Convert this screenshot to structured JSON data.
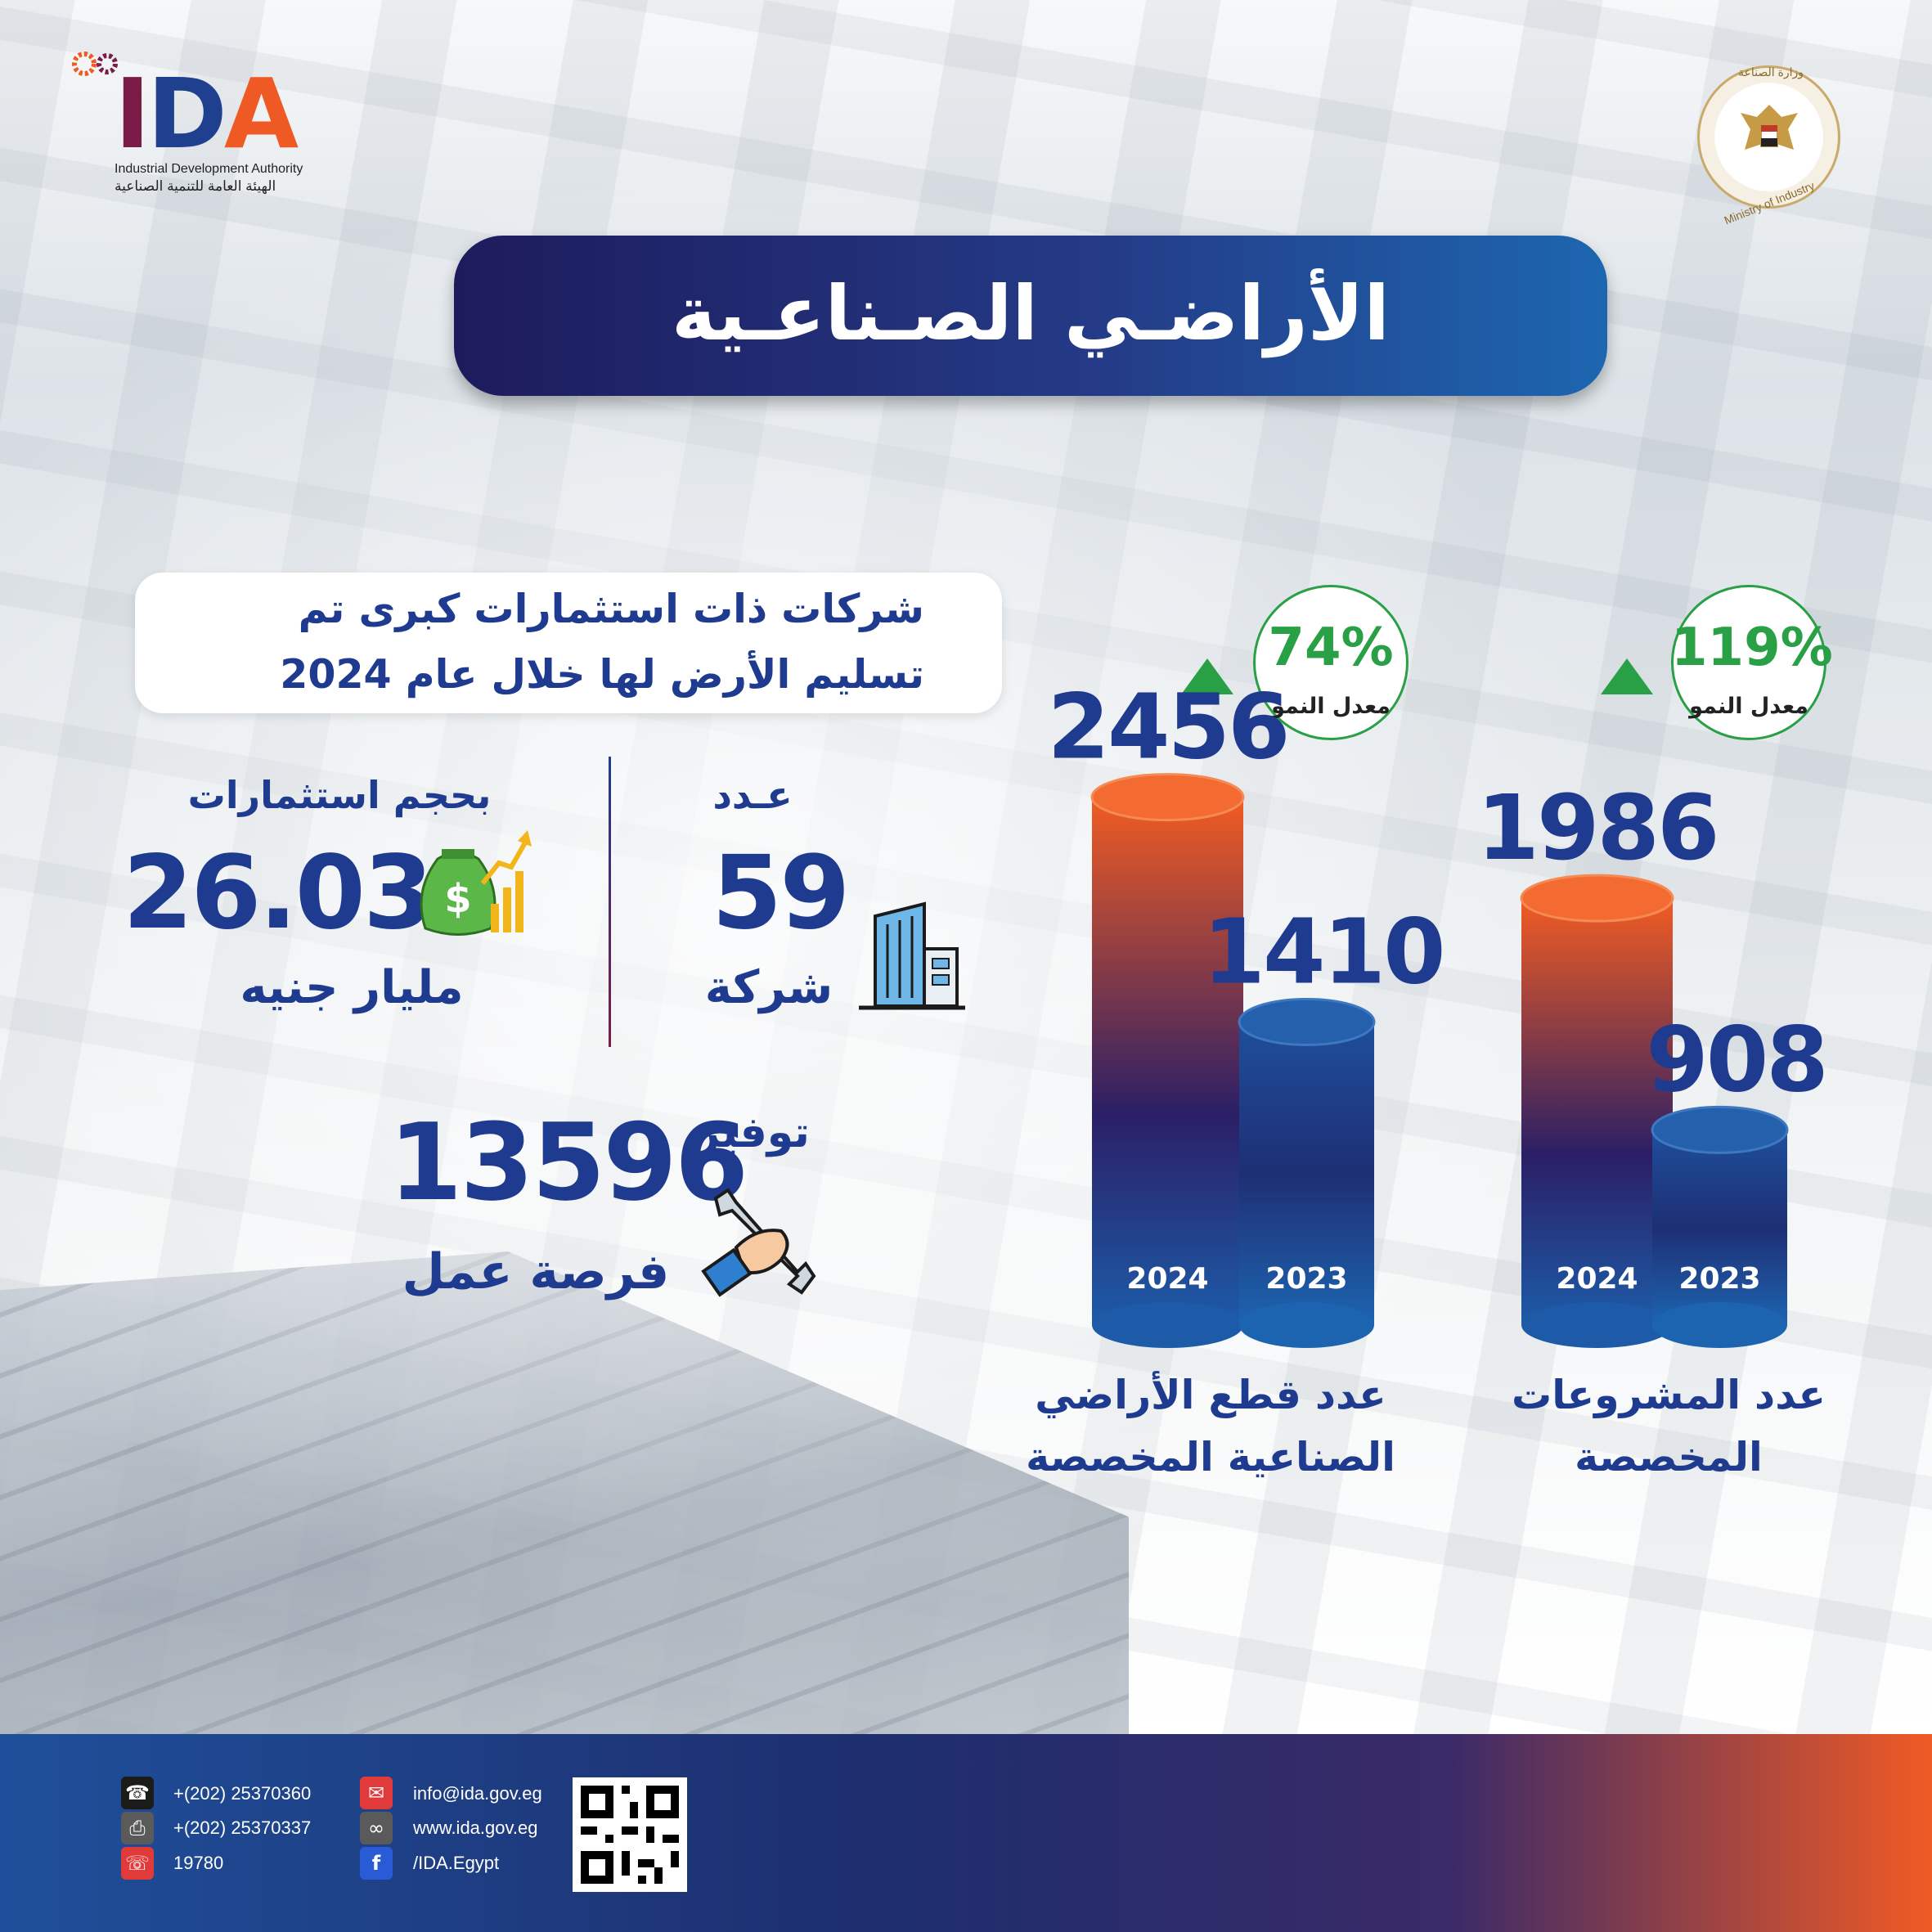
{
  "header": {
    "org_en": "Industrial Development Authority",
    "org_ar": "الهيئة العامة للتنمية الصناعية",
    "ministry_ar": "وزارة الصناعة",
    "ministry_en": "Ministry of Industry",
    "title": "الأراضـي الصـناعـية"
  },
  "stats": {
    "subtitle_line1": "شركات ذات استثمارات كبرى تم",
    "subtitle_line2": "تسليم الأرض لها خلال عام 2024",
    "companies_label": "عـدد",
    "companies_value": "59",
    "companies_unit": "شركة",
    "investment_label": "بحجم استثمارات",
    "investment_value": "26.03",
    "investment_unit": "مليار جنيه",
    "jobs_label": "توفير",
    "jobs_value": "13596",
    "jobs_unit": "فرصة عمل"
  },
  "chart_data": [
    {
      "type": "bar",
      "title": "عدد المشروعات المخصصة",
      "categories": [
        "2024",
        "2023"
      ],
      "values": [
        1986,
        908
      ],
      "growth": "119%",
      "growth_label": "معدل النمو",
      "colors": [
        "#ef5a24",
        "#1d5ba8"
      ]
    },
    {
      "type": "bar",
      "title": "عدد قطع الأراضي الصناعية المخصصة",
      "categories": [
        "2024",
        "2023"
      ],
      "values": [
        2456,
        1410
      ],
      "growth": "74%",
      "growth_label": "معدل النمو",
      "colors": [
        "#ef5a24",
        "#1d5ba8"
      ]
    }
  ],
  "chart_captions": {
    "projects_line1": "عدد المشروعات",
    "projects_line2": "المخصصة",
    "lands_line1": "عدد قطع الأراضي",
    "lands_line2": "الصناعية المخصصة"
  },
  "footer": {
    "phone": "+(202) 25370360",
    "fax": "+(202) 25370337",
    "hotline": "19780",
    "email": "info@ida.gov.eg",
    "website": "www.ida.gov.eg",
    "facebook": "/IDA.Egypt"
  },
  "colors": {
    "brand_blue": "#1f3b8f",
    "brand_orange": "#ef5a24",
    "growth_green": "#2aa046"
  }
}
